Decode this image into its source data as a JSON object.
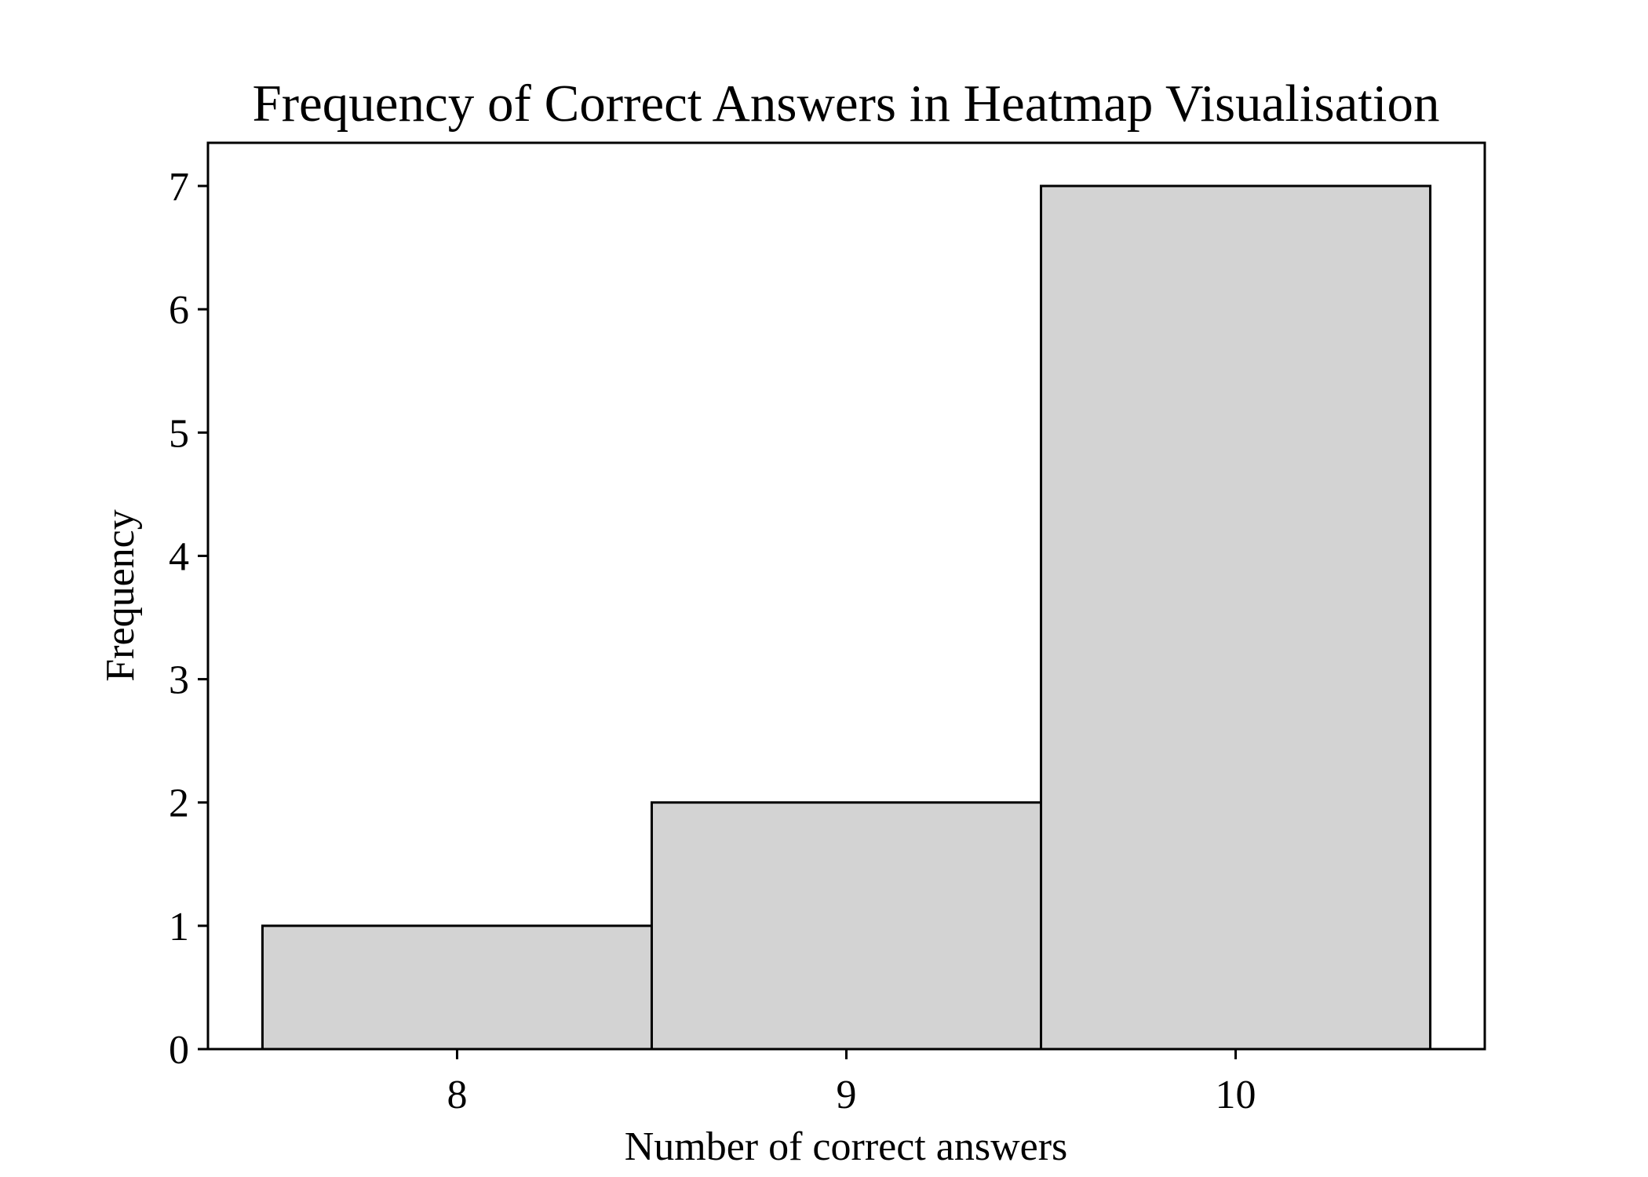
{
  "chart_data": {
    "type": "bar",
    "title": "Frequency of Correct Answers in Heatmap Visualisation",
    "xlabel": "Number of correct answers",
    "ylabel": "Frequency",
    "categories": [
      "8",
      "9",
      "10"
    ],
    "x": [
      8,
      9,
      10
    ],
    "values": [
      1,
      2,
      7
    ],
    "bar_width": 1,
    "xlim": [
      7.36,
      10.64
    ],
    "ylim": [
      0,
      7.35
    ],
    "x_ticks": [
      8,
      9,
      10
    ],
    "x_tick_labels": [
      "8",
      "9",
      "10"
    ],
    "y_ticks": [
      0,
      1,
      2,
      3,
      4,
      5,
      6,
      7
    ],
    "y_tick_labels": [
      "0",
      "1",
      "2",
      "3",
      "4",
      "5",
      "6",
      "7"
    ],
    "grid": false,
    "legend": "none",
    "colors": {
      "bar_fill": "#d3d3d3",
      "bar_edge": "#000000",
      "axes": "#000000",
      "text": "#000000",
      "background": "#ffffff"
    }
  }
}
